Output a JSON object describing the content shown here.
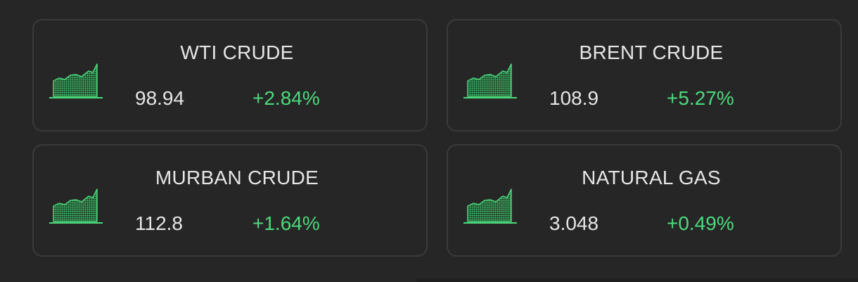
{
  "colors": {
    "background": "#262626",
    "card_border": "#3a3a3a",
    "text": "#e6e6e6",
    "positive": "#4cd97b"
  },
  "commodities": [
    {
      "name": "WTI CRUDE",
      "price": "98.94",
      "change": "+2.84%",
      "icon": "area-chart-icon"
    },
    {
      "name": "BRENT CRUDE",
      "price": "108.9",
      "change": "+5.27%",
      "icon": "area-chart-icon"
    },
    {
      "name": "MURBAN CRUDE",
      "price": "112.8",
      "change": "+1.64%",
      "icon": "area-chart-icon"
    },
    {
      "name": "NATURAL GAS",
      "price": "3.048",
      "change": "+0.49%",
      "icon": "area-chart-icon"
    }
  ]
}
